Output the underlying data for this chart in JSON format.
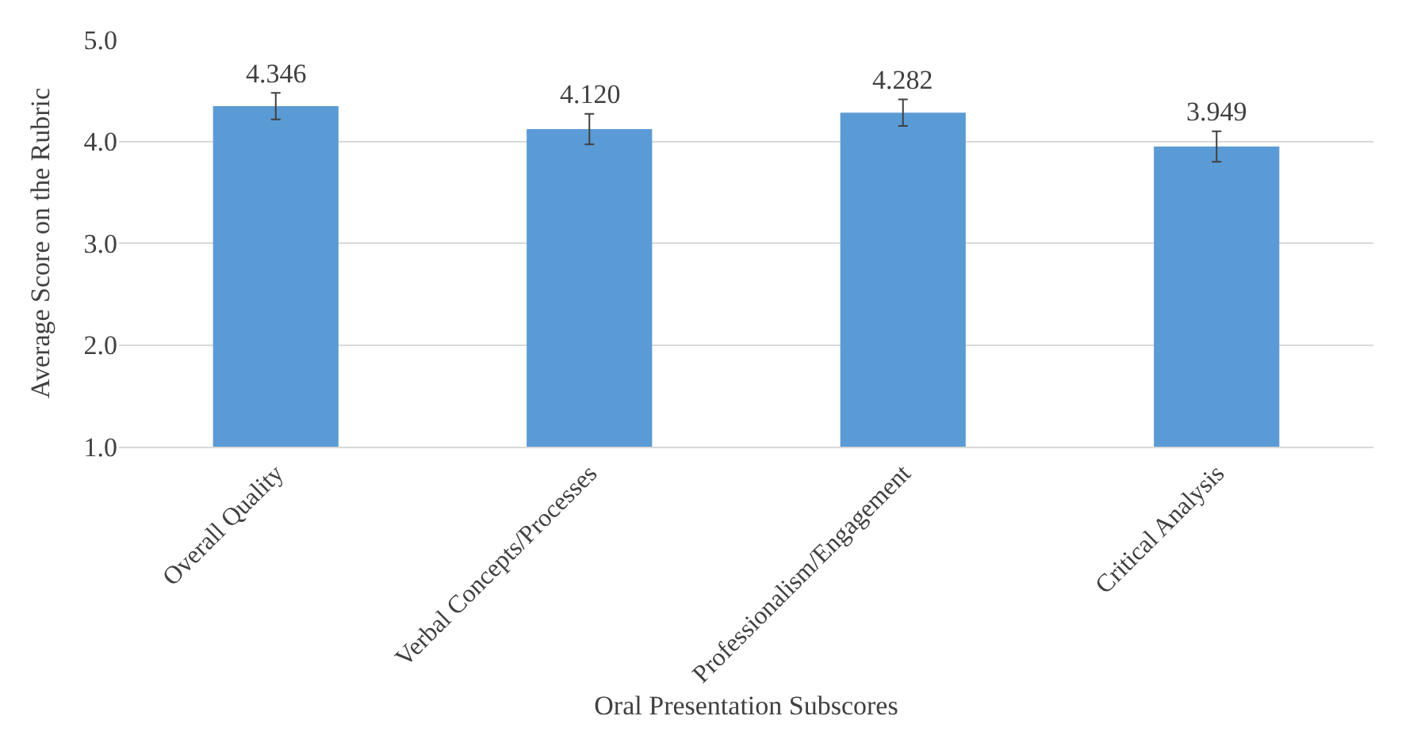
{
  "chart_data": {
    "type": "bar",
    "xlabel": "Oral Presentation Subscores",
    "ylabel": "Average Score on the Rubric",
    "categories": [
      "Overall Quality",
      "Verbal Concepts/Processes",
      "Professionalism/Engagement",
      "Critical Analysis"
    ],
    "values": [
      4.346,
      4.12,
      4.282,
      3.949
    ],
    "color": "#5b9bd5",
    "errors": [
      0.13,
      0.15,
      0.13,
      0.15
    ],
    "ylim": [
      1,
      5
    ],
    "yticks": [
      {
        "value": 1,
        "label": "1.0"
      },
      {
        "value": 2,
        "label": "2.0"
      },
      {
        "value": 3,
        "label": "3.0"
      },
      {
        "value": 4,
        "label": "4.0"
      },
      {
        "value": 5,
        "label": "5.0"
      }
    ],
    "grid": "y",
    "value_labels": [
      "4.346",
      "4.120",
      "4.282",
      "3.949"
    ]
  }
}
